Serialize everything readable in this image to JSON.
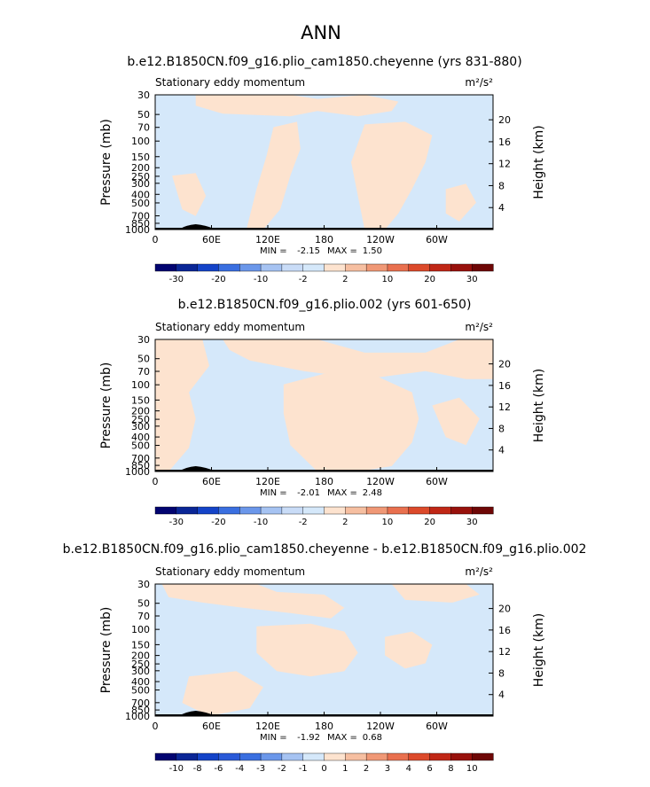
{
  "title": "ANN",
  "colors": {
    "positive": "#fde3cf",
    "negative": "#d5e8fa",
    "terrain": "#000000"
  },
  "chart_data": [
    {
      "type": "heatmap",
      "title": "b.e12.B1850CN.f09_g16.plio_cam1850.cheyenne (yrs 831-880)",
      "left_label": "Stationary eddy momentum",
      "units": "m²/s²",
      "ylabel": "Pressure (mb)",
      "ylabel_right": "Height (km)",
      "xticks": [
        "0",
        "60E",
        "120E",
        "180",
        "120W",
        "60W"
      ],
      "yticks": [
        "30",
        "50",
        "70",
        "100",
        "150",
        "200",
        "250",
        "300",
        "400",
        "500",
        "700",
        "850",
        "1000"
      ],
      "height_ticks": [
        "20",
        "16",
        "12",
        "8",
        "4"
      ],
      "min_label": "MIN =",
      "min_value": "-2.15",
      "max_label": "MAX =",
      "max_value": "1.50",
      "colorbar_labels": [
        "-30",
        "-20",
        "-10",
        "-2",
        "2",
        "10",
        "20",
        "30"
      ],
      "colorbar_colors": [
        "#020470",
        "#0a2696",
        "#1443c8",
        "#3a6fe0",
        "#6b97ea",
        "#a6c3f2",
        "#c9dcf7",
        "#d5e8fa",
        "#fde3cf",
        "#f6bfa1",
        "#f09876",
        "#e9704f",
        "#dc4a2b",
        "#c02716",
        "#98110c",
        "#6e0706"
      ]
    },
    {
      "type": "heatmap",
      "title": "b.e12.B1850CN.f09_g16.plio.002 (yrs 601-650)",
      "left_label": "Stationary eddy momentum",
      "units": "m²/s²",
      "ylabel": "Pressure (mb)",
      "ylabel_right": "Height (km)",
      "xticks": [
        "0",
        "60E",
        "120E",
        "180",
        "120W",
        "60W"
      ],
      "yticks": [
        "30",
        "50",
        "70",
        "100",
        "150",
        "200",
        "250",
        "300",
        "400",
        "500",
        "700",
        "850",
        "1000"
      ],
      "height_ticks": [
        "20",
        "16",
        "12",
        "8",
        "4"
      ],
      "min_label": "MIN =",
      "min_value": "-2.01",
      "max_label": "MAX =",
      "max_value": "2.48",
      "colorbar_labels": [
        "-30",
        "-20",
        "-10",
        "-2",
        "2",
        "10",
        "20",
        "30"
      ],
      "colorbar_colors": [
        "#020470",
        "#0a2696",
        "#1443c8",
        "#3a6fe0",
        "#6b97ea",
        "#a6c3f2",
        "#c9dcf7",
        "#d5e8fa",
        "#fde3cf",
        "#f6bfa1",
        "#f09876",
        "#e9704f",
        "#dc4a2b",
        "#c02716",
        "#98110c",
        "#6e0706"
      ]
    },
    {
      "type": "heatmap",
      "title": "b.e12.B1850CN.f09_g16.plio_cam1850.cheyenne - b.e12.B1850CN.f09_g16.plio.002",
      "left_label": "Stationary eddy momentum",
      "units": "m²/s²",
      "ylabel": "Pressure (mb)",
      "ylabel_right": "Height (km)",
      "xticks": [
        "0",
        "60E",
        "120E",
        "180",
        "120W",
        "60W"
      ],
      "yticks": [
        "30",
        "50",
        "70",
        "100",
        "150",
        "200",
        "250",
        "300",
        "400",
        "500",
        "700",
        "850",
        "1000"
      ],
      "height_ticks": [
        "20",
        "16",
        "12",
        "8",
        "4"
      ],
      "min_label": "MIN =",
      "min_value": "-1.92",
      "max_label": "MAX =",
      "max_value": "0.68",
      "colorbar_labels": [
        "-10",
        "-8",
        "-6",
        "-4",
        "-3",
        "-2",
        "-1",
        "0",
        "1",
        "2",
        "3",
        "4",
        "6",
        "8",
        "10"
      ],
      "colorbar_colors": [
        "#020470",
        "#0a2696",
        "#1443c8",
        "#2a5ad8",
        "#3a6fe0",
        "#6b97ea",
        "#a6c3f2",
        "#d5e8fa",
        "#fde3cf",
        "#f6bfa1",
        "#f09876",
        "#e9704f",
        "#dc4a2b",
        "#c02716",
        "#98110c",
        "#6e0706"
      ]
    }
  ]
}
